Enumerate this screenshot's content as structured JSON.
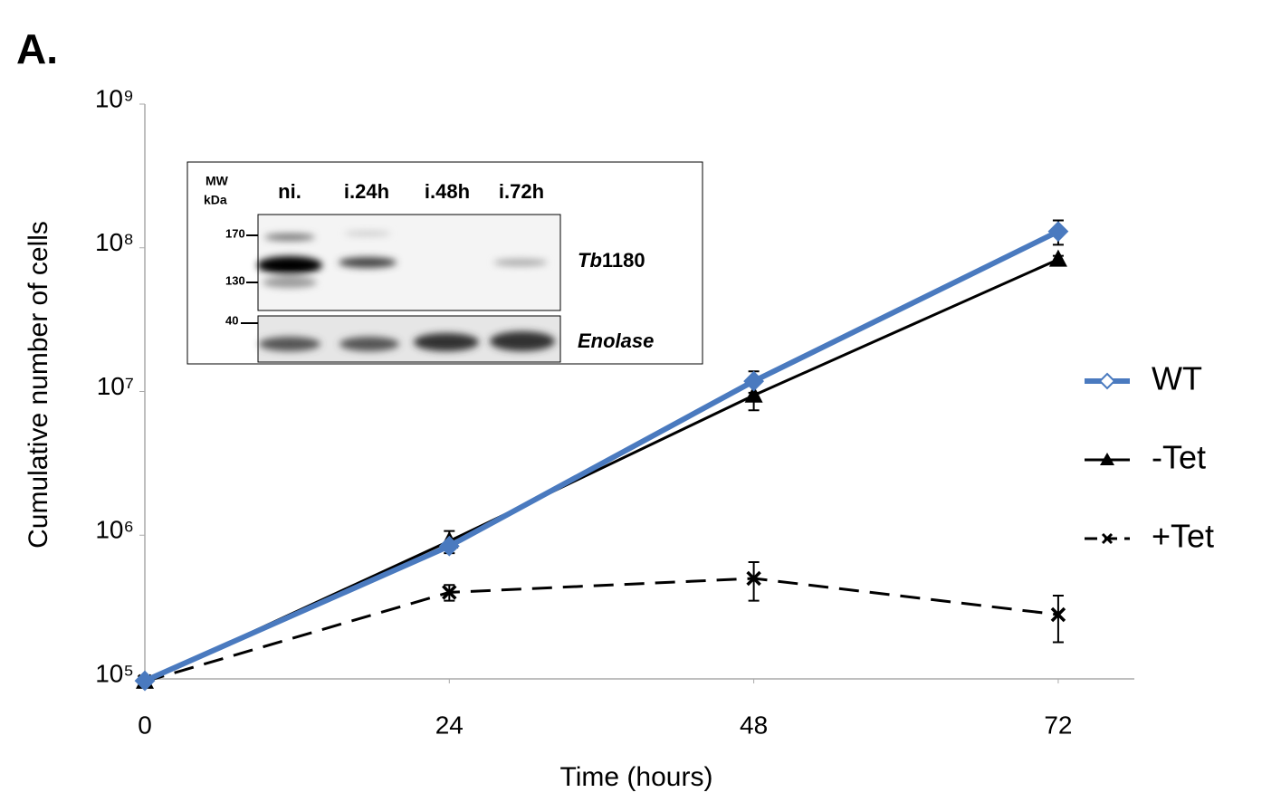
{
  "panel_label": "A.",
  "chart_data": {
    "type": "line",
    "x_label": "Time (hours)",
    "y_label": "Cumulative number of cells",
    "x": [
      0,
      24,
      48,
      72
    ],
    "xlim": [
      0,
      78
    ],
    "xticks": [
      0,
      24,
      48,
      72
    ],
    "ylim": [
      100000,
      1000000000
    ],
    "yscale": "log",
    "yticks": [
      {
        "value": 100000,
        "label": "10⁵"
      },
      {
        "value": 1000000,
        "label": "10⁶"
      },
      {
        "value": 10000000,
        "label": "10⁷"
      },
      {
        "value": 100000000,
        "label": "10⁸"
      },
      {
        "value": 1000000000,
        "label": "10⁹"
      }
    ],
    "legend": "right",
    "series": [
      {
        "name": "WT",
        "color": "#4a7abf",
        "line_width": 6,
        "line_style": "solid",
        "marker": "diamond",
        "values": [
          97000,
          840000,
          11800000,
          130000000
        ],
        "errors": [
          0,
          50000,
          2000000,
          25000000
        ]
      },
      {
        "name": "-Tet",
        "color": "#000000",
        "line_width": 3,
        "line_style": "solid",
        "marker": "triangle",
        "values": [
          96000,
          910000,
          9400000,
          83000000
        ],
        "errors": [
          0,
          160000,
          2000000,
          5000000
        ]
      },
      {
        "name": "+Tet",
        "color": "#000000",
        "line_width": 3,
        "line_style": "dashed",
        "marker": "x",
        "values": [
          96000,
          400000,
          500000,
          280000
        ],
        "errors": [
          0,
          50000,
          150000,
          100000
        ]
      }
    ]
  },
  "inset": {
    "mw_label": [
      "MW",
      "kDa"
    ],
    "lanes": [
      "ni.",
      "i.24h",
      "i.48h",
      "i.72h"
    ],
    "markers": [
      "170",
      "130",
      "40"
    ],
    "target_label_italic": "Tb",
    "target_label": "1180",
    "control_label": "Enolase"
  }
}
